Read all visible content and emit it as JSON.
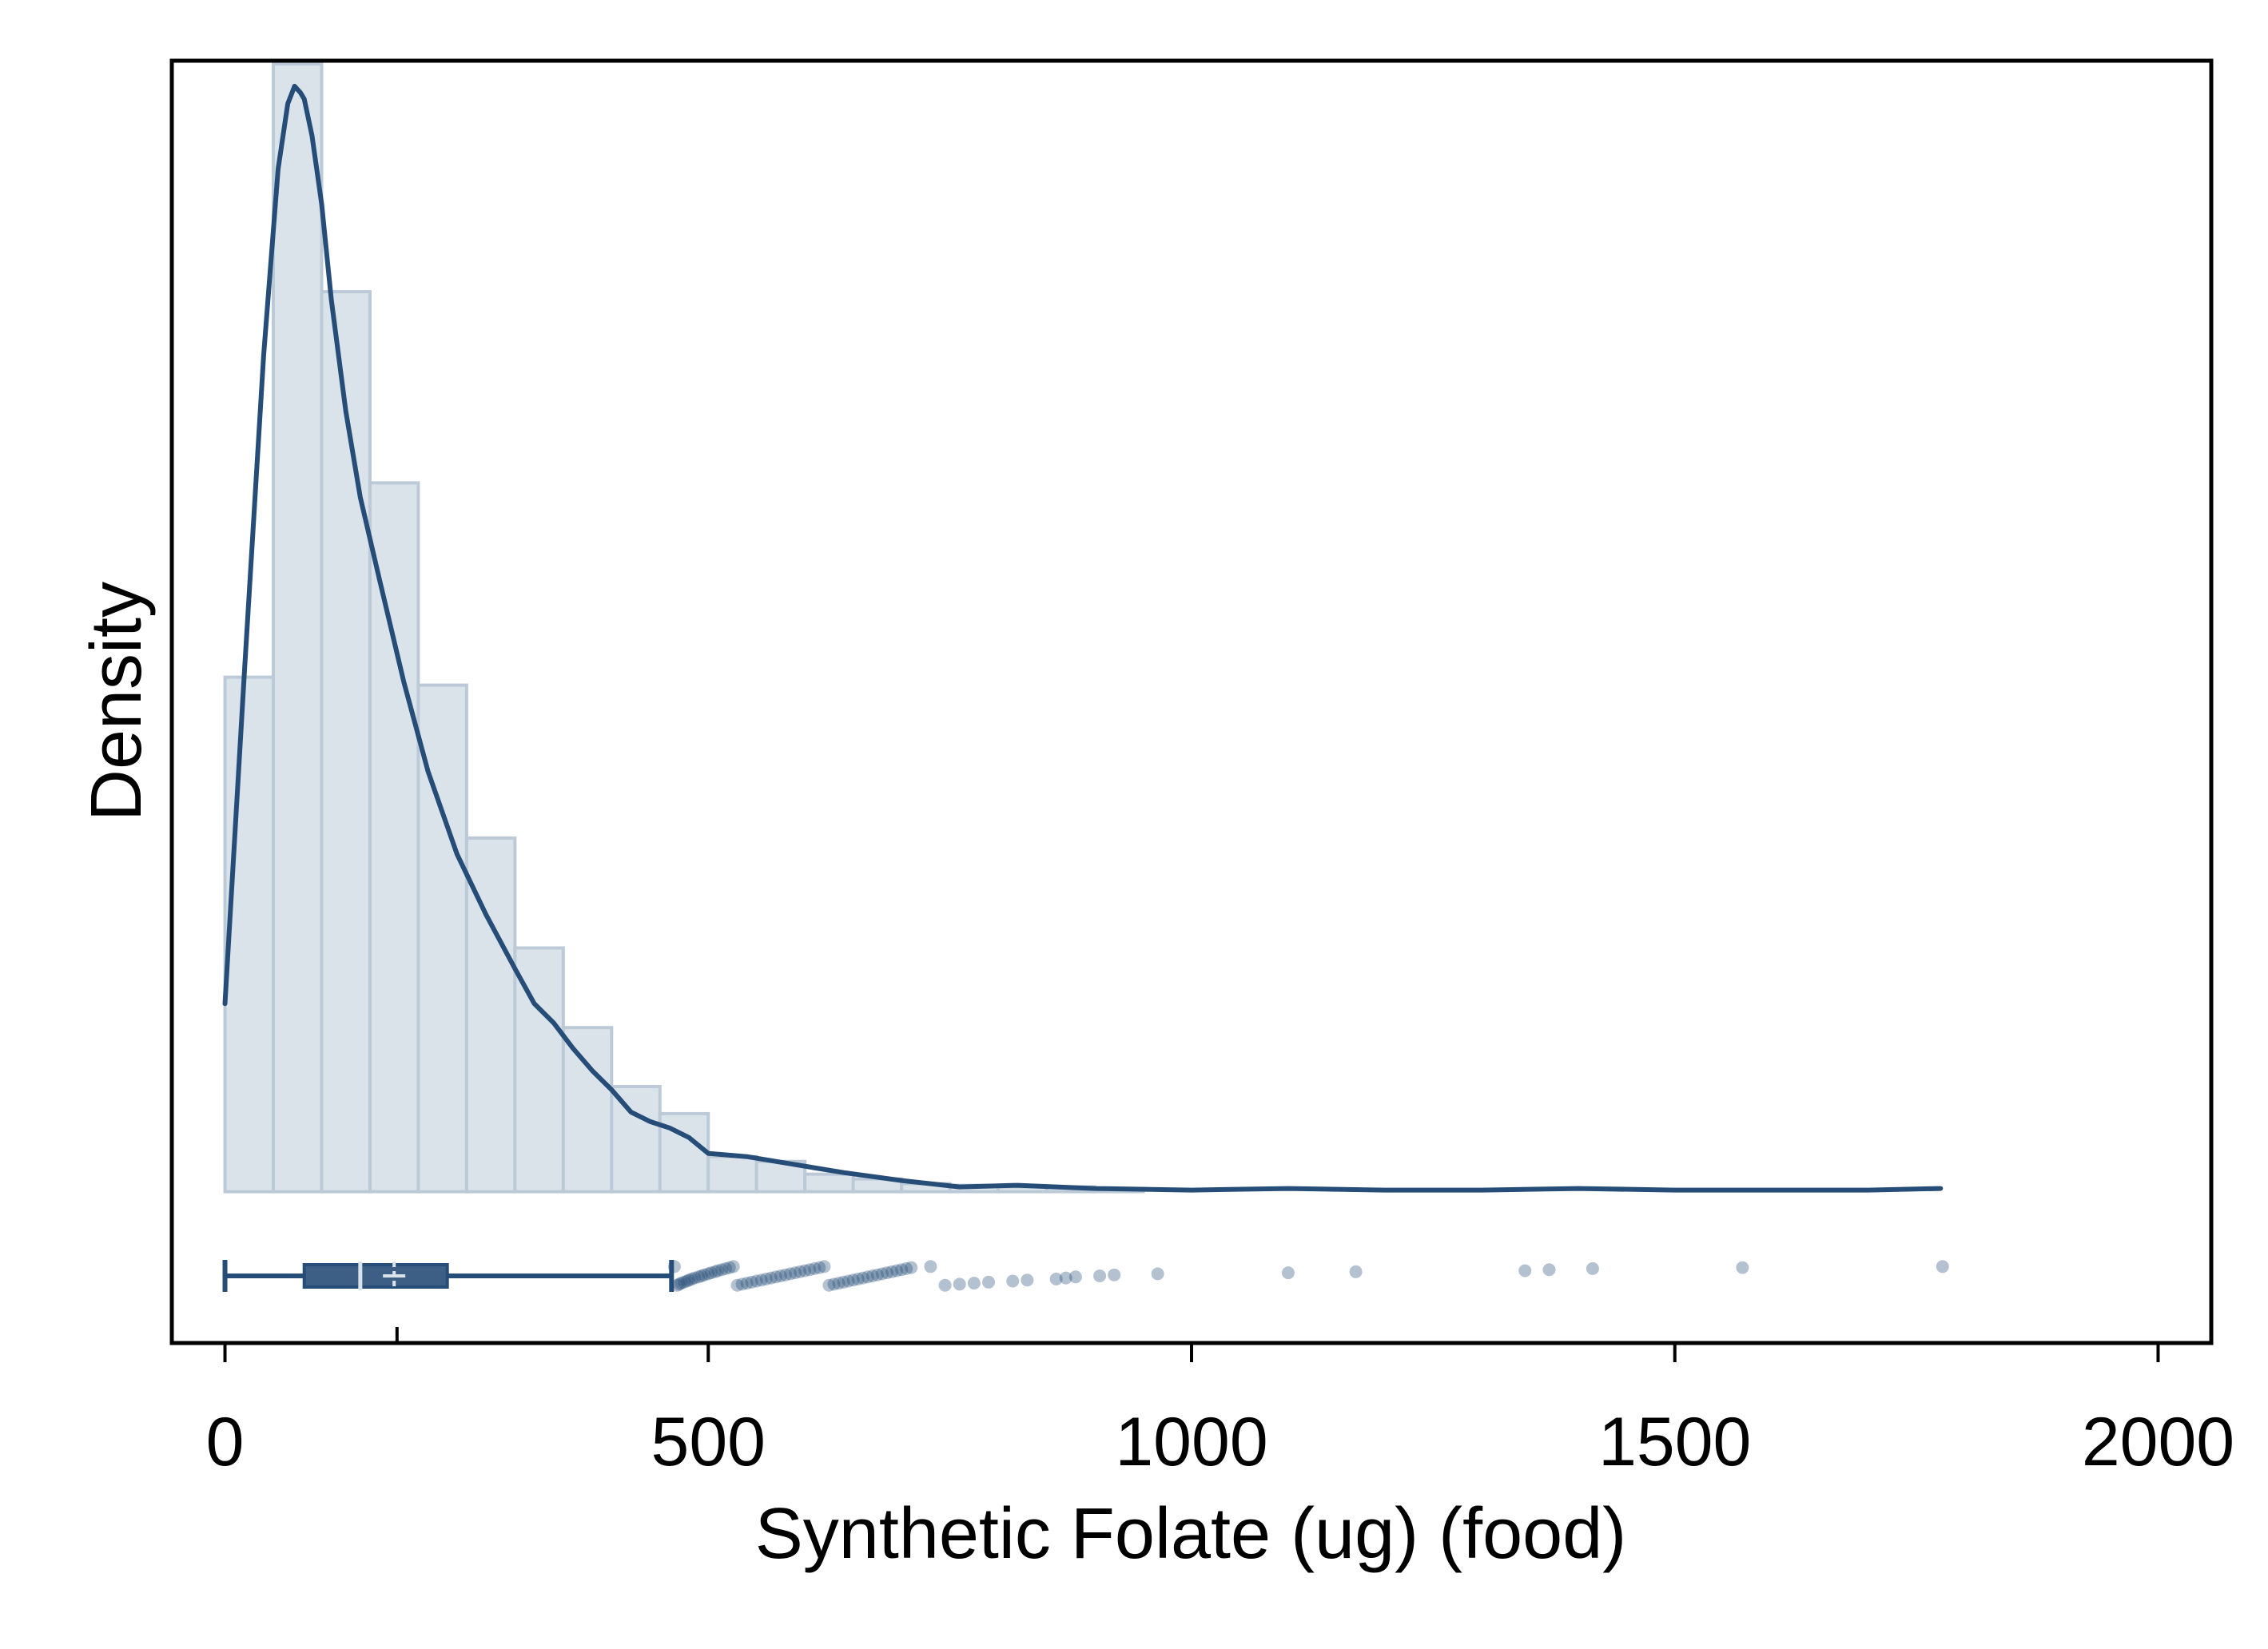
{
  "chart_data": {
    "type": "histogram",
    "title": "",
    "xlabel": "Synthetic Folate (ug) (food)",
    "ylabel": "Density",
    "xlim": [
      -55,
      2055
    ],
    "ylim": [
      -0.00095,
      0.0071
    ],
    "x_ticks": [
      0,
      500,
      1000,
      1500,
      2000
    ],
    "y_ticks_shown": false,
    "colors": {
      "bar_fill": "#dbe3ea",
      "bar_edge": "#bccad8",
      "line": "#264d78",
      "box_fill": "#3d5f85",
      "outlier": "#264d78"
    },
    "histogram": {
      "bin_width": 50,
      "bins": [
        {
          "start": 0,
          "end": 50,
          "density": 0.00323
        },
        {
          "start": 50,
          "end": 100,
          "density": 0.00708
        },
        {
          "start": 100,
          "end": 150,
          "density": 0.00565
        },
        {
          "start": 150,
          "end": 200,
          "density": 0.00445
        },
        {
          "start": 200,
          "end": 250,
          "density": 0.00318
        },
        {
          "start": 250,
          "end": 300,
          "density": 0.00222
        },
        {
          "start": 300,
          "end": 350,
          "density": 0.00153
        },
        {
          "start": 350,
          "end": 400,
          "density": 0.00103
        },
        {
          "start": 400,
          "end": 450,
          "density": 0.00066
        },
        {
          "start": 450,
          "end": 500,
          "density": 0.00049
        },
        {
          "start": 500,
          "end": 550,
          "density": 0.00022
        },
        {
          "start": 550,
          "end": 600,
          "density": 0.00019
        },
        {
          "start": 600,
          "end": 650,
          "density": 0.00011
        },
        {
          "start": 650,
          "end": 700,
          "density": 8e-05
        },
        {
          "start": 700,
          "end": 750,
          "density": 5e-05
        },
        {
          "start": 750,
          "end": 800,
          "density": 4e-05
        },
        {
          "start": 800,
          "end": 850,
          "density": 3e-05
        },
        {
          "start": 850,
          "end": 900,
          "density": 3e-05
        },
        {
          "start": 900,
          "end": 950,
          "density": 2e-05
        }
      ]
    },
    "kde": {
      "x": [
        0,
        20,
        40,
        55,
        65,
        72,
        78,
        82,
        90,
        100,
        110,
        125,
        140,
        160,
        185,
        210,
        240,
        270,
        300,
        320,
        340,
        360,
        380,
        400,
        420,
        440,
        460,
        480,
        500,
        540,
        580,
        640,
        700,
        760,
        820,
        900,
        1000,
        1100,
        1200,
        1300,
        1400,
        1500,
        1600,
        1700,
        1775
      ],
      "density": [
        0.00118,
        0.00325,
        0.00525,
        0.00642,
        0.00683,
        0.00694,
        0.0069,
        0.00686,
        0.00663,
        0.0062,
        0.0056,
        0.0049,
        0.00436,
        0.00384,
        0.0032,
        0.00264,
        0.00212,
        0.00174,
        0.0014,
        0.00118,
        0.00106,
        0.0009,
        0.00076,
        0.00064,
        0.0005,
        0.00044,
        0.0004,
        0.00034,
        0.00024,
        0.00022,
        0.00018,
        0.00012,
        7e-05,
        3e-05,
        4e-05,
        2e-05,
        1e-05,
        2e-05,
        1e-05,
        1e-05,
        2e-05,
        1e-05,
        1e-05,
        1e-05,
        2e-05
      ]
    },
    "boxplot": {
      "whisker_low": 0,
      "q1": 82,
      "median": 140,
      "mean": 175,
      "q3": 230,
      "whisker_high": 462,
      "mean_tick_on_axis": 178,
      "outliers": [
        465,
        468,
        470,
        472,
        475,
        478,
        480,
        483,
        486,
        490,
        493,
        496,
        500,
        503,
        507,
        510,
        514,
        518,
        522,
        526,
        530,
        535,
        540,
        545,
        550,
        555,
        560,
        565,
        570,
        575,
        580,
        585,
        590,
        595,
        600,
        605,
        610,
        615,
        620,
        625,
        630,
        635,
        640,
        645,
        650,
        655,
        660,
        665,
        670,
        675,
        680,
        685,
        690,
        695,
        700,
        705,
        710,
        730,
        745,
        760,
        775,
        790,
        815,
        830,
        860,
        870,
        880,
        905,
        920,
        965,
        1100,
        1170,
        1345,
        1370,
        1415,
        1570,
        1777
      ]
    }
  }
}
